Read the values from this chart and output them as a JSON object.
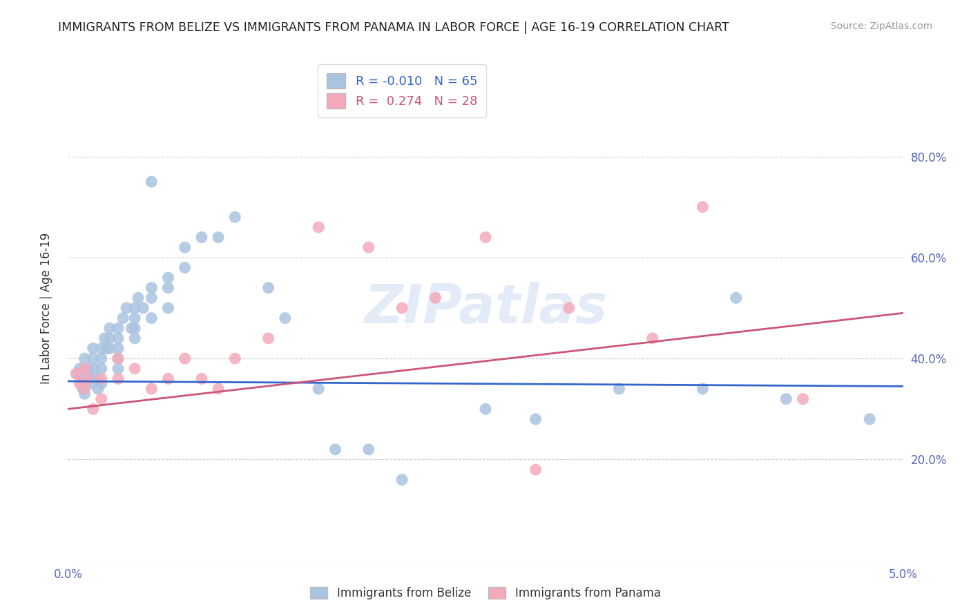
{
  "title": "IMMIGRANTS FROM BELIZE VS IMMIGRANTS FROM PANAMA IN LABOR FORCE | AGE 16-19 CORRELATION CHART",
  "source": "Source: ZipAtlas.com",
  "ylabel": "In Labor Force | Age 16-19",
  "xlim": [
    0.0,
    0.05
  ],
  "ylim": [
    0.0,
    1.0
  ],
  "ytick_vals": [
    0.0,
    0.2,
    0.4,
    0.6,
    0.8
  ],
  "ytick_labels": [
    "",
    "20.0%",
    "40.0%",
    "60.0%",
    "80.0%"
  ],
  "xtick_vals": [
    0.0,
    0.01,
    0.02,
    0.03,
    0.04,
    0.05
  ],
  "xtick_labels": [
    "0.0%",
    "",
    "",
    "",
    "",
    "5.0%"
  ],
  "legend_r_belize": "-0.010",
  "legend_n_belize": "65",
  "legend_r_panama": "0.274",
  "legend_n_panama": "28",
  "color_belize": "#aac4e0",
  "color_panama": "#f4aabb",
  "line_color_belize": "#3366cc",
  "line_color_panama": "#cc5577",
  "watermark": "ZIPatlas",
  "background_color": "#ffffff",
  "grid_color": "#cccccc",
  "belize_x": [
    0.0005,
    0.0007,
    0.0008,
    0.0009,
    0.001,
    0.001,
    0.001,
    0.001,
    0.001,
    0.0012,
    0.0013,
    0.0014,
    0.0015,
    0.0015,
    0.0016,
    0.0017,
    0.0018,
    0.002,
    0.002,
    0.002,
    0.002,
    0.0022,
    0.0023,
    0.0025,
    0.0025,
    0.0025,
    0.003,
    0.003,
    0.003,
    0.003,
    0.003,
    0.0033,
    0.0035,
    0.0038,
    0.004,
    0.004,
    0.004,
    0.004,
    0.0042,
    0.0045,
    0.005,
    0.005,
    0.005,
    0.005,
    0.006,
    0.006,
    0.006,
    0.007,
    0.007,
    0.008,
    0.009,
    0.01,
    0.012,
    0.013,
    0.015,
    0.016,
    0.018,
    0.02,
    0.025,
    0.028,
    0.033,
    0.038,
    0.04,
    0.043,
    0.048
  ],
  "belize_y": [
    0.37,
    0.38,
    0.36,
    0.34,
    0.4,
    0.38,
    0.36,
    0.35,
    0.33,
    0.38,
    0.36,
    0.35,
    0.42,
    0.4,
    0.38,
    0.36,
    0.34,
    0.42,
    0.4,
    0.38,
    0.35,
    0.44,
    0.42,
    0.46,
    0.44,
    0.42,
    0.46,
    0.44,
    0.42,
    0.4,
    0.38,
    0.48,
    0.5,
    0.46,
    0.5,
    0.48,
    0.46,
    0.44,
    0.52,
    0.5,
    0.75,
    0.54,
    0.52,
    0.48,
    0.56,
    0.54,
    0.5,
    0.62,
    0.58,
    0.64,
    0.64,
    0.68,
    0.54,
    0.48,
    0.34,
    0.22,
    0.22,
    0.16,
    0.3,
    0.28,
    0.34,
    0.34,
    0.52,
    0.32,
    0.28
  ],
  "panama_x": [
    0.0005,
    0.0007,
    0.001,
    0.001,
    0.0012,
    0.0015,
    0.002,
    0.002,
    0.003,
    0.003,
    0.004,
    0.005,
    0.006,
    0.007,
    0.008,
    0.009,
    0.01,
    0.012,
    0.015,
    0.018,
    0.02,
    0.022,
    0.025,
    0.028,
    0.03,
    0.035,
    0.038,
    0.044
  ],
  "panama_y": [
    0.37,
    0.35,
    0.38,
    0.34,
    0.36,
    0.3,
    0.36,
    0.32,
    0.4,
    0.36,
    0.38,
    0.34,
    0.36,
    0.4,
    0.36,
    0.34,
    0.4,
    0.44,
    0.66,
    0.62,
    0.5,
    0.52,
    0.64,
    0.18,
    0.5,
    0.44,
    0.7,
    0.32
  ]
}
